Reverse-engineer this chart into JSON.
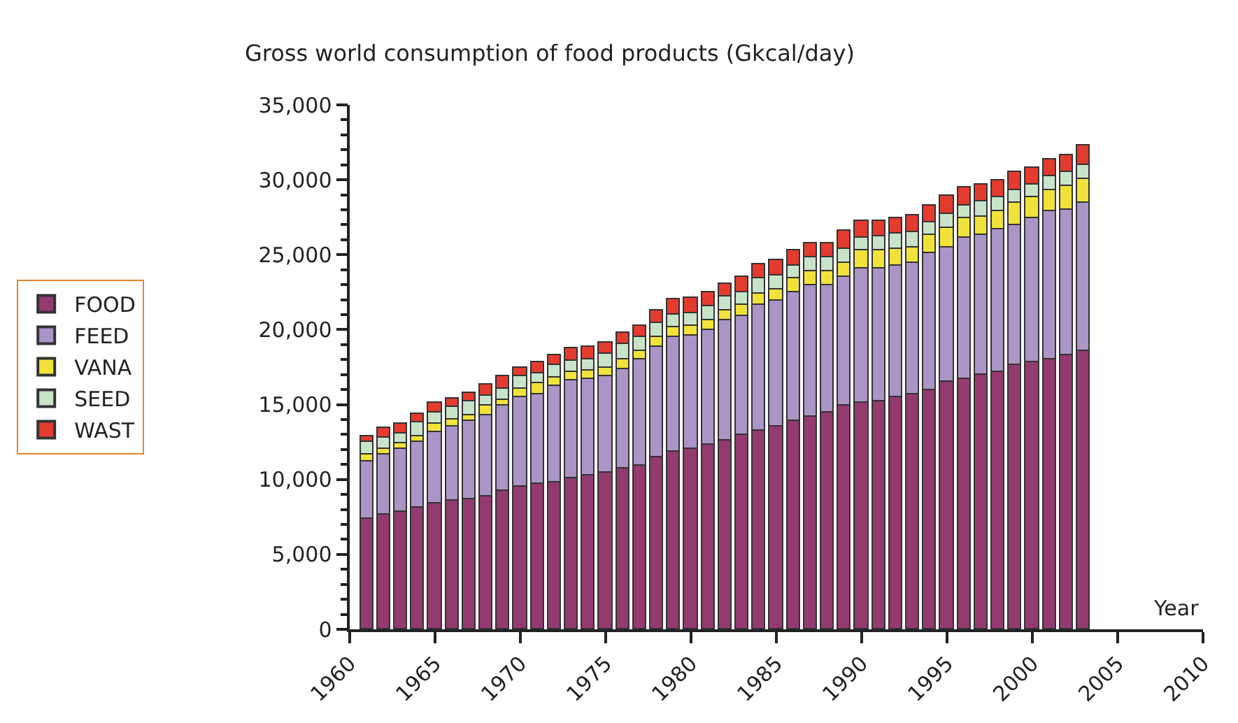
{
  "chart_data": {
    "type": "bar",
    "stacked": true,
    "title": "Gross world consumption of food products (Gkcal/day)",
    "xlabel": "Year",
    "x": [
      1961,
      1962,
      1963,
      1964,
      1965,
      1966,
      1967,
      1968,
      1969,
      1970,
      1971,
      1972,
      1973,
      1974,
      1975,
      1976,
      1977,
      1978,
      1979,
      1980,
      1981,
      1982,
      1983,
      1984,
      1985,
      1986,
      1987,
      1988,
      1989,
      1990,
      1991,
      1992,
      1993,
      1994,
      1995,
      1996,
      1997,
      1998,
      1999,
      2000,
      2001,
      2002,
      2003
    ],
    "xlim": [
      1960,
      2010
    ],
    "xticks": [
      1960,
      1965,
      1970,
      1975,
      1980,
      1985,
      1990,
      1995,
      2000,
      2005,
      2010
    ],
    "ylim": [
      0,
      35000
    ],
    "yticks": [
      {
        "value": 0,
        "label": "0"
      },
      {
        "value": 1000,
        "label": null
      },
      {
        "value": 2000,
        "label": null
      },
      {
        "value": 3000,
        "label": null
      },
      {
        "value": 4000,
        "label": null
      },
      {
        "value": 5000,
        "label": "5,000"
      },
      {
        "value": 6000,
        "label": null
      },
      {
        "value": 7000,
        "label": null
      },
      {
        "value": 8000,
        "label": null
      },
      {
        "value": 9000,
        "label": null
      },
      {
        "value": 10000,
        "label": "10,000"
      },
      {
        "value": 11000,
        "label": null
      },
      {
        "value": 12000,
        "label": null
      },
      {
        "value": 13000,
        "label": null
      },
      {
        "value": 14000,
        "label": null
      },
      {
        "value": 15000,
        "label": "15,000"
      },
      {
        "value": 16000,
        "label": null
      },
      {
        "value": 17000,
        "label": null
      },
      {
        "value": 18000,
        "label": null
      },
      {
        "value": 19000,
        "label": null
      },
      {
        "value": 20000,
        "label": "20,000"
      },
      {
        "value": 21000,
        "label": null
      },
      {
        "value": 22000,
        "label": null
      },
      {
        "value": 23000,
        "label": null
      },
      {
        "value": 24000,
        "label": null
      },
      {
        "value": 25000,
        "label": "25,000"
      },
      {
        "value": 26000,
        "label": null
      },
      {
        "value": 27000,
        "label": null
      },
      {
        "value": 28000,
        "label": null
      },
      {
        "value": 29000,
        "label": null
      },
      {
        "value": 30000,
        "label": "30,000"
      },
      {
        "value": 31000,
        "label": null
      },
      {
        "value": 32000,
        "label": null
      },
      {
        "value": 33000,
        "label": null
      },
      {
        "value": 34000,
        "label": null
      },
      {
        "value": 35000,
        "label": "35,000"
      }
    ],
    "legend": "left",
    "series": [
      {
        "name": "FOOD",
        "color": "#933a6f",
        "values": [
          7400,
          7700,
          7800,
          8100,
          8400,
          8600,
          8700,
          8900,
          9200,
          9500,
          9700,
          9800,
          10100,
          10300,
          10500,
          10700,
          10900,
          11500,
          11900,
          12000,
          12300,
          12600,
          13000,
          13300,
          13500,
          13900,
          14200,
          14500,
          14900,
          15100,
          15200,
          15500,
          15700,
          16000,
          16500,
          16700,
          17000,
          17200,
          17600,
          17800,
          18000,
          18300,
          18600
        ]
      },
      {
        "name": "FEED",
        "color": "#ab94c6",
        "values": [
          3800,
          4000,
          4200,
          4400,
          4800,
          4900,
          5200,
          5400,
          5700,
          6000,
          6000,
          6400,
          6500,
          6400,
          6400,
          6700,
          7100,
          7400,
          7600,
          7600,
          7700,
          8000,
          7900,
          8400,
          8400,
          8600,
          8800,
          8500,
          8600,
          9000,
          8900,
          8800,
          8800,
          9100,
          9000,
          9400,
          9300,
          9500,
          9400,
          9600,
          9900,
          9700,
          9900
        ]
      },
      {
        "name": "VANA",
        "color": "#f0e23a",
        "values": [
          500,
          300,
          400,
          400,
          500,
          500,
          400,
          600,
          400,
          600,
          700,
          600,
          600,
          600,
          600,
          600,
          600,
          600,
          700,
          700,
          600,
          700,
          800,
          700,
          800,
          900,
          900,
          900,
          1000,
          1200,
          1200,
          1100,
          1000,
          1200,
          1300,
          1300,
          1200,
          1200,
          1500,
          1400,
          1400,
          1600,
          1600
        ]
      },
      {
        "name": "SEED",
        "color": "#c8e3c8",
        "values": [
          800,
          800,
          700,
          900,
          800,
          800,
          900,
          700,
          800,
          800,
          700,
          800,
          700,
          700,
          900,
          1000,
          900,
          900,
          800,
          800,
          1000,
          900,
          800,
          1000,
          900,
          900,
          900,
          900,
          900,
          800,
          900,
          1000,
          1000,
          900,
          900,
          900,
          1100,
          900,
          800,
          900,
          900,
          900,
          900
        ]
      },
      {
        "name": "WAST",
        "color": "#e43b2f",
        "values": [
          400,
          600,
          600,
          600,
          600,
          600,
          600,
          700,
          800,
          600,
          700,
          700,
          900,
          900,
          700,
          800,
          800,
          900,
          1000,
          1000,
          900,
          900,
          1000,
          1000,
          1000,
          1000,
          1000,
          1000,
          1200,
          1200,
          1100,
          1000,
          1100,
          1100,
          1200,
          1200,
          1100,
          1200,
          1200,
          1100,
          1200,
          1100,
          1300
        ]
      }
    ]
  }
}
